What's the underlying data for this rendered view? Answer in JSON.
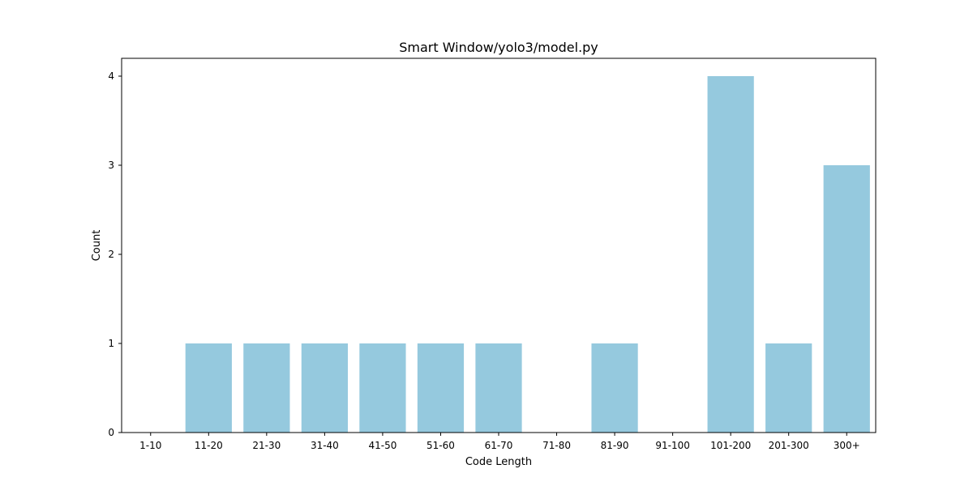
{
  "chart_data": {
    "type": "bar",
    "title": "Smart Window/yolo3/model.py",
    "xlabel": "Code Length",
    "ylabel": "Count",
    "categories": [
      "1-10",
      "11-20",
      "21-30",
      "31-40",
      "41-50",
      "51-60",
      "61-70",
      "71-80",
      "81-90",
      "91-100",
      "101-200",
      "201-300",
      "300+"
    ],
    "values": [
      0,
      1,
      1,
      1,
      1,
      1,
      1,
      0,
      1,
      0,
      4,
      1,
      3
    ],
    "ylim": [
      0,
      4.2
    ],
    "yticks": [
      "0",
      "1",
      "2",
      "3",
      "4"
    ],
    "grid": false,
    "legend": "none",
    "bar_color": "#95c9de",
    "axis_color": "#000000"
  }
}
